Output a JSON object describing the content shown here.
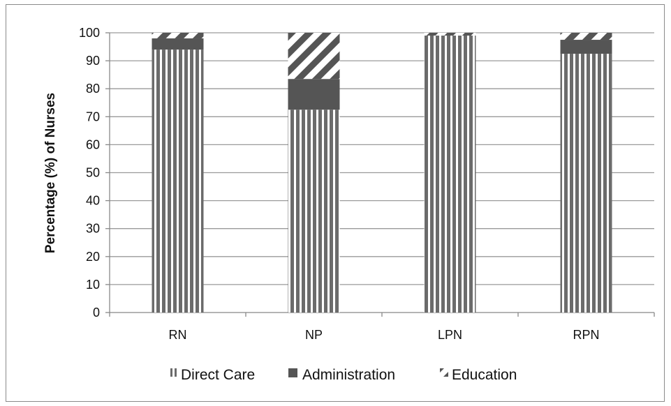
{
  "chart_data": {
    "type": "bar",
    "stacked": true,
    "title": "",
    "xlabel": "",
    "ylabel": "Percentage (%) of Nurses",
    "ylim": [
      0,
      100
    ],
    "yticks": [
      0,
      10,
      20,
      30,
      40,
      50,
      60,
      70,
      80,
      90,
      100
    ],
    "categories": [
      "RN",
      "NP",
      "LPN",
      "RPN"
    ],
    "series": [
      {
        "name": "Direct Care",
        "values": [
          94,
          72.5,
          99,
          92.5
        ],
        "pattern": "vertical-stripes",
        "color": "#6b6b6b"
      },
      {
        "name": "Administration",
        "values": [
          4,
          11,
          0,
          5
        ],
        "pattern": "solid",
        "color": "#555555"
      },
      {
        "name": "Education",
        "values": [
          2,
          16.5,
          1,
          2.5
        ],
        "pattern": "diagonal-stripes",
        "color": "#555555"
      }
    ],
    "grid": true,
    "legend_position": "bottom"
  }
}
